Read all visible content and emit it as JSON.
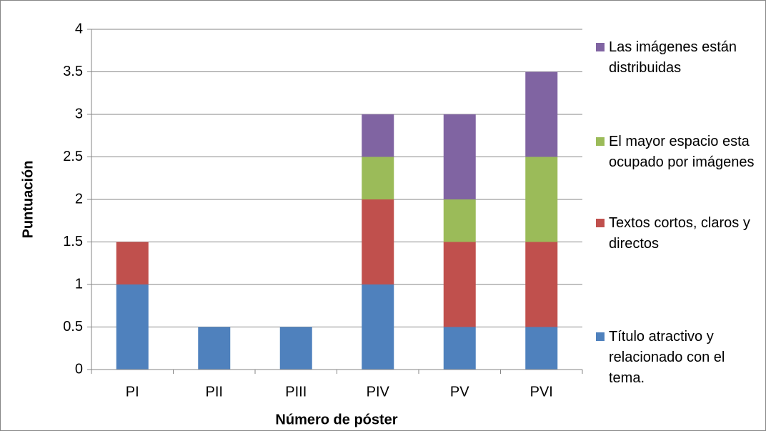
{
  "chart_data": {
    "type": "stacked_bar",
    "x_label": "Número de póster",
    "y_label": "Puntuación",
    "categories": [
      "PI",
      "PII",
      "PIII",
      "PIV",
      "PV",
      "PVI"
    ],
    "series": [
      {
        "name": "Título atractivo y relacionado con el tema.",
        "color": "#4f81bd",
        "values": [
          1,
          0.5,
          0.5,
          1,
          0.5,
          0.5
        ]
      },
      {
        "name": "Textos cortos, claros y directos",
        "color": "#c0504d",
        "values": [
          0.5,
          0,
          0,
          1,
          1,
          1
        ]
      },
      {
        "name": "El mayor espacio esta ocupado por imágenes",
        "color": "#9bbb59",
        "values": [
          0,
          0,
          0,
          0.5,
          0.5,
          1
        ]
      },
      {
        "name": "Las imágenes están distribuidas",
        "color": "#8064a2",
        "values": [
          0,
          0,
          0,
          0.5,
          1,
          1
        ]
      }
    ],
    "ylim": [
      0,
      4
    ],
    "yticks": [
      0,
      0.5,
      1,
      1.5,
      2,
      2.5,
      3,
      3.5,
      4
    ],
    "grid": true,
    "legend": "right"
  }
}
